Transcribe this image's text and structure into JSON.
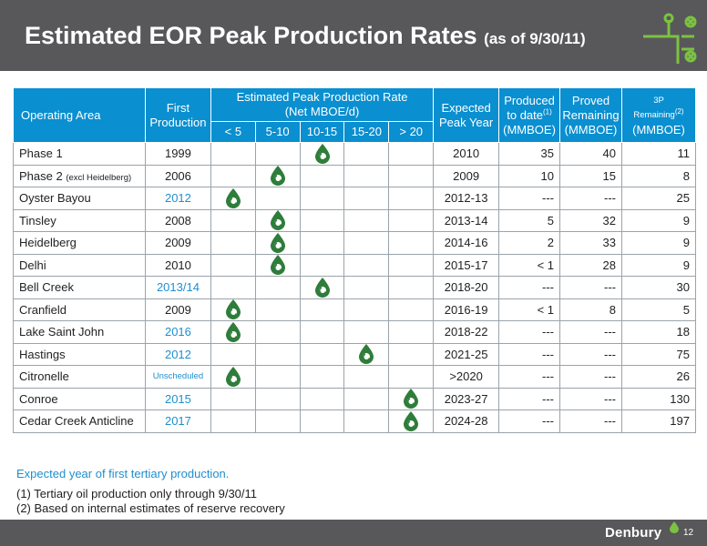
{
  "header": {
    "title": "Estimated EOR Peak Production Rates",
    "subtitle": "(as of 9/30/11)"
  },
  "table": {
    "headers": {
      "area": "Operating Area",
      "first_production": "First Production",
      "peak_rate_line1": "Estimated Peak Production Rate",
      "peak_rate_line2": "(Net MBOE/d)",
      "ranges": [
        "< 5",
        "5-10",
        "10-15",
        "15-20",
        "> 20"
      ],
      "expected_peak_year": "Expected Peak Year",
      "produced_line1": "Produced",
      "produced_line2": "to date",
      "produced_sup": "(1)",
      "produced_unit": "(MMBOE)",
      "proved_line1": "Proved",
      "proved_line2": "Remaining",
      "proved_unit": "(MMBOE)",
      "threep_line1": "3P",
      "threep_line2": "Remaining",
      "threep_sup": "(2)",
      "threep_unit": "(MMBOE)"
    },
    "rows": [
      {
        "area": "Phase 1",
        "area_note": "",
        "first": "1999",
        "first_blue": false,
        "range": 2,
        "peak": "2010",
        "produced": "35",
        "proved": "40",
        "threep": "11"
      },
      {
        "area": "Phase 2",
        "area_note": "(excl Heidelberg)",
        "first": "2006",
        "first_blue": false,
        "range": 1,
        "peak": "2009",
        "produced": "10",
        "proved": "15",
        "threep": "8"
      },
      {
        "area": "Oyster Bayou",
        "area_note": "",
        "first": "2012",
        "first_blue": true,
        "range": 0,
        "peak": "2012-13",
        "produced": "---",
        "proved": "---",
        "threep": "25"
      },
      {
        "area": "Tinsley",
        "area_note": "",
        "first": "2008",
        "first_blue": false,
        "range": 1,
        "peak": "2013-14",
        "produced": "5",
        "proved": "32",
        "threep": "9"
      },
      {
        "area": "Heidelberg",
        "area_note": "",
        "first": "2009",
        "first_blue": false,
        "range": 1,
        "peak": "2014-16",
        "produced": "2",
        "proved": "33",
        "threep": "9"
      },
      {
        "area": "Delhi",
        "area_note": "",
        "first": "2010",
        "first_blue": false,
        "range": 1,
        "peak": "2015-17",
        "produced": "< 1",
        "proved": "28",
        "threep": "9"
      },
      {
        "area": "Bell Creek",
        "area_note": "",
        "first": "2013/14",
        "first_blue": true,
        "range": 2,
        "peak": "2018-20",
        "produced": "---",
        "proved": "---",
        "threep": "30"
      },
      {
        "area": "Cranfield",
        "area_note": "",
        "first": "2009",
        "first_blue": false,
        "range": 0,
        "peak": "2016-19",
        "produced": "< 1",
        "proved": "8",
        "threep": "5"
      },
      {
        "area": "Lake Saint John",
        "area_note": "",
        "first": "2016",
        "first_blue": true,
        "range": 0,
        "peak": "2018-22",
        "produced": "---",
        "proved": "---",
        "threep": "18"
      },
      {
        "area": "Hastings",
        "area_note": "",
        "first": "2012",
        "first_blue": true,
        "range": 3,
        "peak": "2021-25",
        "produced": "---",
        "proved": "---",
        "threep": "75"
      },
      {
        "area": "Citronelle",
        "area_note": "",
        "first": "Unscheduled",
        "first_blue": true,
        "range": 0,
        "peak": ">2020",
        "produced": "---",
        "proved": "---",
        "threep": "26"
      },
      {
        "area": "Conroe",
        "area_note": "",
        "first": "2015",
        "first_blue": true,
        "range": 4,
        "peak": "2023-27",
        "produced": "---",
        "proved": "---",
        "threep": "130"
      },
      {
        "area": "Cedar Creek Anticline",
        "area_note": "",
        "first": "2017",
        "first_blue": true,
        "range": 4,
        "peak": "2024-28",
        "produced": "---",
        "proved": "---",
        "threep": "197"
      }
    ]
  },
  "notes": {
    "blue_note": "Expected year of first tertiary production.",
    "footnotes": [
      "(1)   Tertiary oil production only through 9/30/11",
      "(2)   Based on internal estimates of reserve recovery"
    ]
  },
  "footer": {
    "brand": "Denbury",
    "page_number": "12"
  },
  "colors": {
    "header_bg": "#58585a",
    "table_header_bg": "#0a8fd0",
    "accent_blue": "#1d8fcf",
    "drop_green": "#2e7d3a"
  },
  "icons": {
    "rate_marker": "oil-drop-icon",
    "logo": "pipeline-valve-icon"
  }
}
